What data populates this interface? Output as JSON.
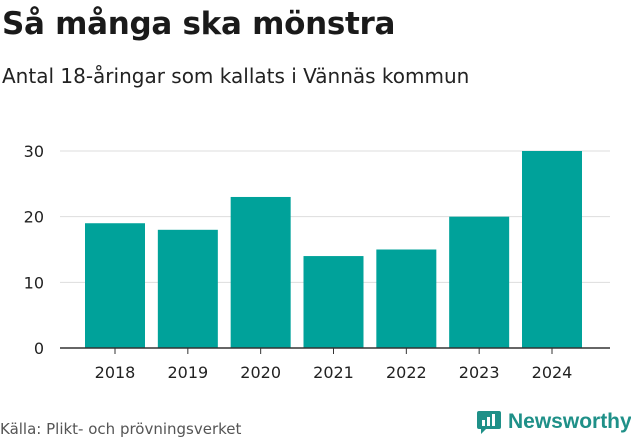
{
  "chart_data": {
    "type": "bar",
    "title": "Så många ska mönstra",
    "subtitle": "Antal 18-åringar som kallats i Vännäs kommun",
    "categories": [
      "2018",
      "2019",
      "2020",
      "2021",
      "2022",
      "2023",
      "2024"
    ],
    "values": [
      19,
      18,
      23,
      14,
      15,
      20,
      30
    ],
    "ylim": [
      0,
      30
    ],
    "yticks": [
      0,
      10,
      20,
      30
    ],
    "xlabel": "",
    "ylabel": "",
    "grid": true,
    "bar_color": "#00a29a"
  },
  "source": "Källa: Plikt- och prövningsverket",
  "brand": {
    "name": "Newsworthy",
    "icon": "chart-speech-bubble-icon",
    "color": "#1f9088"
  }
}
